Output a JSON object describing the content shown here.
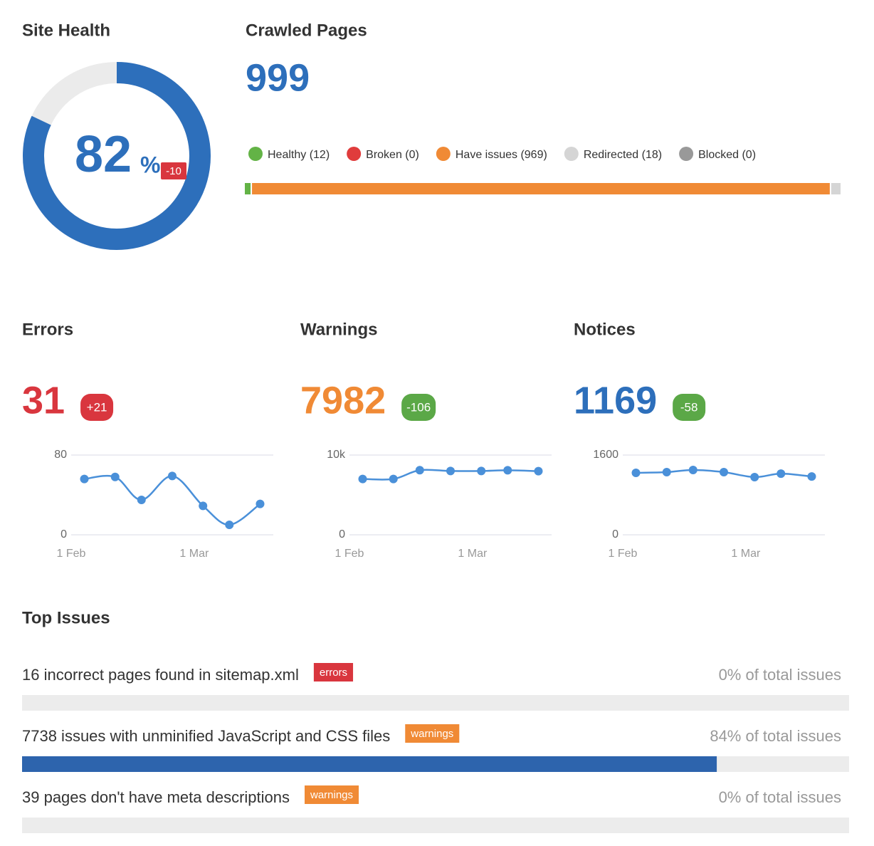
{
  "chart_data": [
    {
      "type": "donut",
      "title": "Site Health",
      "value": 82,
      "unit": "%",
      "change": -10,
      "color": "#2d6fbb",
      "track_color": "#ebebeb",
      "change_color": "#d9363e"
    },
    {
      "type": "stacked_bar",
      "title": "Crawled Pages",
      "total": 999,
      "total_color": "#2d6fbb",
      "series": [
        {
          "name": "Healthy (12)",
          "color": "#63b346",
          "value": 12
        },
        {
          "name": "Broken (0)",
          "color": "#e03c3c",
          "value": 0
        },
        {
          "name": "Have issues (969)",
          "color": "#f08a35",
          "value": 969
        },
        {
          "name": "Redirected (18)",
          "color": "#d5d5d5",
          "value": 18
        },
        {
          "name": "Blocked (0)",
          "color": "#999999",
          "value": 0
        }
      ]
    },
    {
      "type": "line",
      "title": "Errors",
      "value": 31,
      "value_color": "#d9363e",
      "change": {
        "value": 21,
        "label": "+21"
      },
      "change_color": "#d9363e",
      "x": [
        3,
        10,
        16,
        23,
        30,
        36,
        43
      ],
      "xlim": [
        0,
        46
      ],
      "xticks": [
        {
          "value": 0,
          "label": "1 Feb"
        },
        {
          "value": 28,
          "label": "1 Mar"
        }
      ],
      "ylim": [
        0,
        80
      ],
      "yticks": [
        0,
        80
      ],
      "grid": true,
      "smooth": true,
      "series": [
        {
          "color": "#4a90d9",
          "values": [
            56,
            58,
            35,
            59,
            29,
            10,
            31
          ]
        }
      ]
    },
    {
      "type": "line",
      "title": "Warnings",
      "value": 7982,
      "value_color": "#f08a35",
      "change": -106,
      "change_color": "#5ba847",
      "x": [
        3,
        10,
        16,
        23,
        30,
        36,
        43
      ],
      "xlim": [
        0,
        46
      ],
      "xticks": [
        {
          "value": 0,
          "label": "1 Feb"
        },
        {
          "value": 28,
          "label": "1 Mar"
        }
      ],
      "ylim": [
        0,
        10000
      ],
      "yticks": [
        0,
        {
          "value": 10000,
          "label": "10k"
        }
      ],
      "grid": true,
      "smooth": true,
      "series": [
        {
          "color": "#4a90d9",
          "values": [
            7000,
            7000,
            8100,
            8000,
            8000,
            8088,
            7982
          ]
        }
      ]
    },
    {
      "type": "line",
      "title": "Notices",
      "value": 1169,
      "value_color": "#2d6fbb",
      "change": -58,
      "change_color": "#5ba847",
      "x": [
        3,
        10,
        16,
        23,
        30,
        36,
        43
      ],
      "xlim": [
        0,
        46
      ],
      "xticks": [
        {
          "value": 0,
          "label": "1 Feb"
        },
        {
          "value": 28,
          "label": "1 Mar"
        }
      ],
      "ylim": [
        0,
        1600
      ],
      "yticks": [
        0,
        1600
      ],
      "grid": true,
      "smooth": true,
      "series": [
        {
          "color": "#4a90d9",
          "values": [
            1243,
            1257,
            1300,
            1257,
            1157,
            1227,
            1169
          ]
        }
      ]
    },
    {
      "type": "issues",
      "title": "Top Issues",
      "bar_color": "#2d64ad",
      "track_color": "#ececec",
      "rows": [
        {
          "text": "16 incorrect pages found in sitemap.xml",
          "tag": "errors",
          "tag_color": "#d9363e",
          "value": 0,
          "value_label": "0% of total issues"
        },
        {
          "text": "7738 issues with unminified JavaScript and CSS files",
          "tag": "warnings",
          "tag_color": "#f08a35",
          "value": 84,
          "value_label": "84% of total issues"
        },
        {
          "text": "39 pages don't have meta descriptions",
          "tag": "warnings",
          "tag_color": "#f08a35",
          "value": 0,
          "value_label": "0% of total issues"
        }
      ]
    }
  ]
}
